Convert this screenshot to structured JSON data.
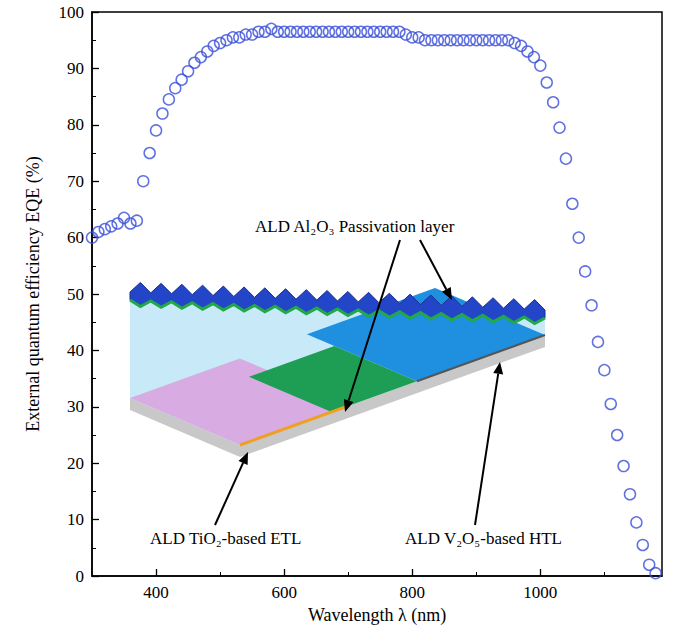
{
  "chart_data": {
    "type": "scatter",
    "x_label": "Wavelength λ (nm)",
    "y_label": "External quantum efficiency EQE (%)",
    "x": [
      300,
      310,
      320,
      330,
      340,
      350,
      360,
      370,
      380,
      390,
      400,
      410,
      420,
      430,
      440,
      450,
      460,
      470,
      480,
      490,
      500,
      510,
      520,
      530,
      540,
      550,
      560,
      570,
      580,
      590,
      600,
      610,
      620,
      630,
      640,
      650,
      660,
      670,
      680,
      690,
      700,
      710,
      720,
      730,
      740,
      750,
      760,
      770,
      780,
      790,
      800,
      810,
      820,
      830,
      840,
      850,
      860,
      870,
      880,
      890,
      900,
      910,
      920,
      930,
      940,
      950,
      960,
      970,
      980,
      990,
      1000,
      1010,
      1020,
      1030,
      1040,
      1050,
      1060,
      1070,
      1080,
      1090,
      1100,
      1110,
      1120,
      1130,
      1140,
      1150,
      1160,
      1170,
      1180
    ],
    "values": [
      60,
      61,
      61.5,
      62,
      62.5,
      63.5,
      62.5,
      63,
      70,
      75,
      79,
      82,
      84.5,
      86.5,
      88,
      89.5,
      91,
      92,
      93,
      94,
      94.5,
      95,
      95.5,
      95.5,
      96,
      96,
      96.5,
      96.5,
      97,
      96.5,
      96.5,
      96.5,
      96.5,
      96.5,
      96.5,
      96.5,
      96.5,
      96.5,
      96.5,
      96.5,
      96.5,
      96.5,
      96.5,
      96.5,
      96.5,
      96.5,
      96.5,
      96.5,
      96.5,
      96,
      95.5,
      95.5,
      95,
      95,
      95,
      95,
      95,
      95,
      95,
      95,
      95,
      95,
      95,
      95,
      95,
      95,
      94.5,
      94,
      93,
      92,
      90.5,
      87.5,
      84,
      79.5,
      74,
      66,
      60,
      54,
      48,
      41.5,
      36.5,
      30.5,
      25,
      19.5,
      14.5,
      9.5,
      5.5,
      2,
      0.5
    ],
    "color": "#3a4fd8",
    "marker": "open circle",
    "xlim": [
      300,
      1190
    ],
    "xticks": [
      400,
      600,
      800,
      1000
    ],
    "ylim": [
      0,
      100
    ],
    "yticks": [
      0,
      10,
      20,
      30,
      40,
      50,
      60,
      70,
      80,
      90,
      100
    ],
    "grid": false,
    "annotations": [
      "ALD Al₂O₃ Passivation layer",
      "ALD TiO₂-based ETL",
      "ALD V₂O₅-based HTL"
    ]
  }
}
